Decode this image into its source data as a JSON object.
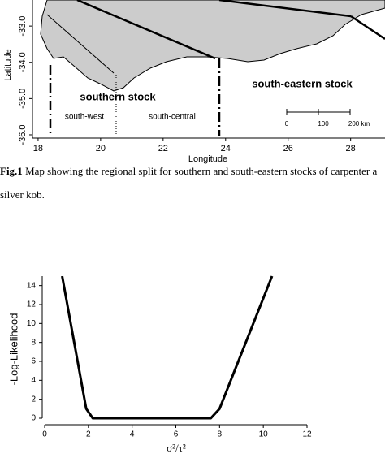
{
  "map": {
    "x_label": "Longitude",
    "y_label": "Latitude",
    "xlim": [
      17.82,
      29.1
    ],
    "ylim": [
      -36.09,
      -32.28
    ],
    "xticks": [
      18,
      20,
      22,
      24,
      26,
      28
    ],
    "yticks": [
      {
        "value": -33,
        "label": "-33.0"
      },
      {
        "value": -34,
        "label": "-34.0"
      },
      {
        "value": -35,
        "label": "-35.0"
      },
      {
        "value": -36,
        "label": "-36.0"
      }
    ],
    "stock_labels": [
      "southern stock",
      "south-eastern stock"
    ],
    "area_labels": [
      "south-west",
      "south-central"
    ],
    "scale_labels": [
      "0",
      "100",
      "200 km"
    ]
  },
  "caption": {
    "label": "Fig.1",
    "text": " Map showing the regional split for southern and south-eastern stocks of carpenter a",
    "text_continued": "silver kob."
  },
  "chart_data": {
    "type": "line",
    "x_label": "σ²/τ²",
    "y_label": "-Log-Likelihood",
    "x": [
      0.8,
      1.9,
      2.2,
      7.6,
      8.0,
      10.4
    ],
    "series": [
      {
        "name": "-Log-Likelihood",
        "color": "#000000",
        "values": [
          15,
          1,
          0,
          0,
          1,
          15
        ]
      }
    ],
    "xlim": [
      0,
      12
    ],
    "ylim": [
      0,
      15
    ],
    "xticks": [
      0,
      2,
      4,
      6,
      8,
      10,
      12
    ],
    "yticks": [
      0,
      2,
      4,
      6,
      8,
      10,
      12,
      14
    ]
  }
}
